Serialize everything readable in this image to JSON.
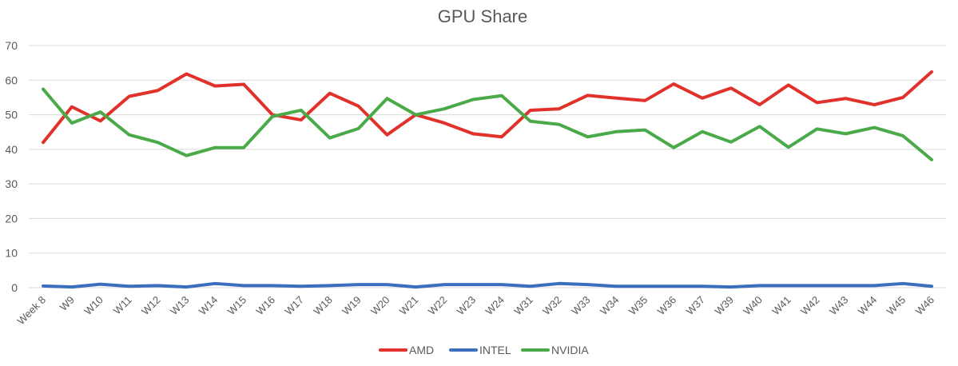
{
  "chart_data": {
    "type": "line",
    "title": "GPU Share",
    "xlabel": "",
    "ylabel": "",
    "ylim": [
      0,
      70
    ],
    "yticks": [
      "0",
      "10",
      "20",
      "30",
      "40",
      "50",
      "60",
      "70"
    ],
    "grid": true,
    "legend_position": "bottom",
    "categories": [
      "Week 8",
      "W9",
      "W10",
      "W11",
      "W12",
      "W13",
      "W14",
      "W15",
      "W16",
      "W17",
      "W18",
      "W19",
      "W20",
      "W21",
      "W22",
      "W23",
      "W24",
      "W31",
      "W32",
      "W33",
      "W34",
      "W35",
      "W36",
      "W37",
      "W39",
      "W40",
      "W41",
      "W42",
      "W43",
      "W44",
      "W45",
      "W46"
    ],
    "series": [
      {
        "name": "AMD",
        "color": "#e0322a",
        "values": [
          42,
          52.3,
          48.2,
          55.3,
          57,
          61.8,
          58.3,
          58.8,
          50,
          48.5,
          56.2,
          52.5,
          44.2,
          50,
          47.6,
          44.5,
          43.6,
          51.3,
          51.7,
          55.6,
          54.8,
          54.1,
          58.9,
          54.8,
          57.7,
          52.9,
          58.6,
          53.5,
          54.7,
          52.9,
          55,
          62.4
        ]
      },
      {
        "name": "INTEL",
        "color": "#3a6fbd",
        "values": [
          0.5,
          0.2,
          1,
          0.4,
          0.6,
          0.2,
          1.2,
          0.6,
          0.6,
          0.4,
          0.6,
          0.9,
          0.9,
          0.2,
          0.9,
          0.9,
          0.9,
          0.4,
          1.2,
          0.9,
          0.4,
          0.4,
          0.4,
          0.4,
          0.2,
          0.6,
          0.6,
          0.6,
          0.6,
          0.6,
          1.2,
          0.4
        ]
      },
      {
        "name": "NVIDIA",
        "color": "#4aaa4a",
        "values": [
          57.4,
          47.6,
          50.8,
          44.2,
          42,
          38.2,
          40.5,
          40.5,
          49.5,
          51.3,
          43.3,
          46,
          54.7,
          50,
          51.7,
          54.4,
          55.5,
          48.1,
          47.2,
          43.6,
          45.1,
          45.6,
          40.5,
          45.1,
          42.1,
          46.6,
          40.6,
          45.9,
          44.5,
          46.3,
          43.9,
          37
        ]
      }
    ]
  }
}
